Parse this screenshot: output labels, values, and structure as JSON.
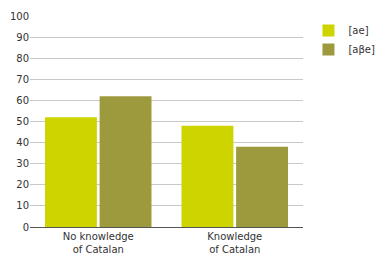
{
  "chart_data": {
    "type": "bar",
    "categories": [
      "No knowledge\nof Catalan",
      "Knowledge\nof Catalan"
    ],
    "series": [
      {
        "name": "[ae]",
        "color": "#cdd400",
        "values": [
          52,
          48
        ]
      },
      {
        "name": "[aβe]",
        "color": "#9c9a3c",
        "values": [
          62,
          38
        ]
      }
    ],
    "ylim": [
      0,
      100
    ],
    "yticks": [
      0,
      10,
      20,
      30,
      40,
      50,
      60,
      70,
      80,
      90,
      100
    ],
    "grid": true,
    "legend": "upper right"
  }
}
